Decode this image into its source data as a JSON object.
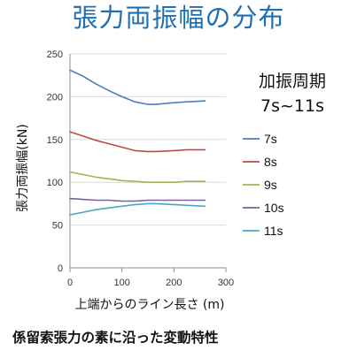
{
  "caption": "係留索張力の素に沿った変動特性",
  "chart_data": {
    "type": "line",
    "title": "張力両振幅の分布",
    "xlabel": "上端からのライン長さ (m)",
    "ylabel": "張力両振幅(kN)",
    "xlim": [
      0,
      300
    ],
    "ylim": [
      0,
      250
    ],
    "xticks": [
      0,
      100,
      200,
      300
    ],
    "yticks": [
      0,
      50,
      100,
      150,
      200,
      250
    ],
    "grid": "horizontal",
    "legend_title": [
      "加振周期",
      "7s~11s"
    ],
    "legend_position": "right",
    "series": [
      {
        "name": "7s",
        "color": "#4a7ebb",
        "x": [
          0,
          25,
          50,
          75,
          100,
          125,
          150,
          165,
          200,
          225,
          260
        ],
        "y": [
          231,
          224,
          215,
          207,
          200,
          194,
          191,
          191,
          193,
          194,
          195
        ]
      },
      {
        "name": "8s",
        "color": "#be4b48",
        "x": [
          0,
          25,
          50,
          75,
          100,
          125,
          150,
          165,
          200,
          225,
          260
        ],
        "y": [
          159,
          154,
          149,
          145,
          141,
          137,
          136,
          136,
          137,
          138,
          138
        ]
      },
      {
        "name": "9s",
        "color": "#98b954",
        "x": [
          0,
          25,
          50,
          75,
          100,
          125,
          150,
          165,
          200,
          225,
          260
        ],
        "y": [
          112,
          109,
          106,
          104,
          102,
          101,
          100,
          100,
          100,
          101,
          101
        ]
      },
      {
        "name": "10s",
        "color": "#7d60a0",
        "x": [
          0,
          25,
          50,
          75,
          100,
          125,
          150,
          165,
          200,
          225,
          260
        ],
        "y": [
          81,
          80,
          79,
          79,
          78,
          78,
          79,
          79,
          79,
          79,
          79
        ]
      },
      {
        "name": "11s",
        "color": "#46aac5",
        "x": [
          0,
          25,
          50,
          75,
          100,
          125,
          150,
          165,
          200,
          225,
          260
        ],
        "y": [
          62,
          65,
          68,
          70,
          72,
          74,
          75,
          75,
          74,
          73,
          72
        ]
      }
    ]
  }
}
